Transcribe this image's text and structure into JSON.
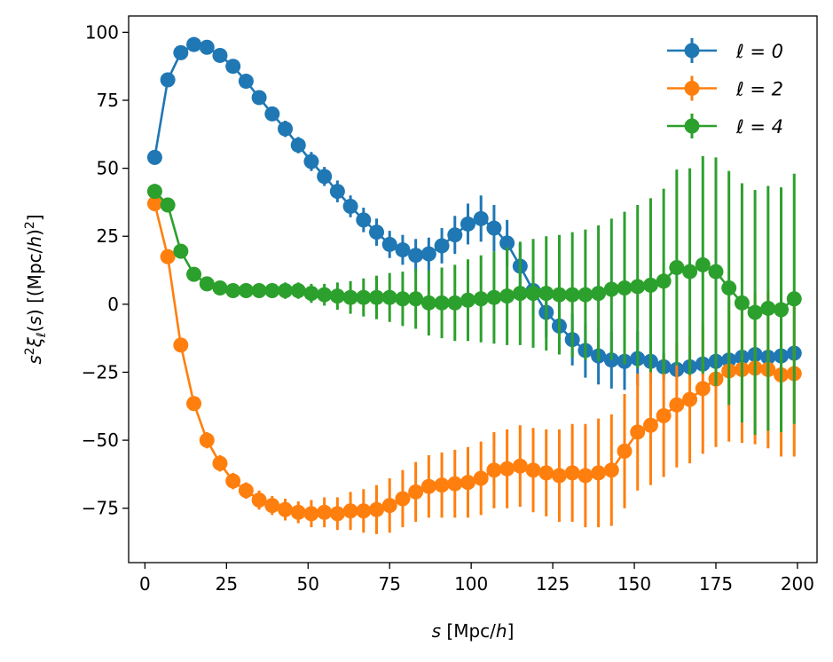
{
  "chart_data": {
    "type": "line",
    "title": "",
    "xlabel": "s [Mpc/h]",
    "ylabel": "s²ξℓ(s) [(Mpc/h)²]",
    "xlim": [
      -5,
      206
    ],
    "ylim": [
      -95,
      106
    ],
    "xticks": [
      0,
      25,
      50,
      75,
      100,
      125,
      150,
      175,
      200
    ],
    "yticks": [
      -75,
      -50,
      -25,
      0,
      25,
      50,
      75,
      100
    ],
    "legend_position": "top-right",
    "x": [
      3,
      7,
      11,
      15,
      19,
      23,
      27,
      31,
      35,
      39,
      43,
      47,
      51,
      55,
      59,
      63,
      67,
      71,
      75,
      79,
      83,
      87,
      91,
      95,
      99,
      103,
      107,
      111,
      115,
      119,
      123,
      127,
      131,
      135,
      139,
      143,
      147,
      151,
      155,
      159,
      163,
      167,
      171,
      175,
      179,
      183,
      187,
      191,
      195,
      199
    ],
    "series": [
      {
        "name": "ℓ = 0",
        "legend_label": "ℓ = 0",
        "color": "#1f77b4",
        "values": [
          54,
          82.5,
          92.5,
          95.5,
          94.5,
          91.5,
          87.5,
          82,
          76,
          70,
          64.5,
          58.5,
          52.5,
          47,
          41.5,
          36,
          31,
          26.5,
          22,
          20,
          18,
          18.5,
          21.5,
          25.5,
          29.5,
          31.5,
          28,
          22.5,
          14,
          5,
          -3,
          -8,
          -13,
          -17,
          -19,
          -20.5,
          -21,
          -20,
          -21,
          -23,
          -24,
          -23,
          -22,
          -21,
          -20.5,
          -19.5,
          -18.5,
          -19.5,
          -19,
          -18
        ],
        "errors": [
          1,
          1.5,
          2,
          2,
          2,
          2,
          2,
          2,
          2.5,
          2.5,
          3,
          3,
          3.5,
          3.5,
          4,
          4,
          4.5,
          5,
          5,
          5.5,
          6,
          6,
          6.5,
          7,
          7.5,
          8.5,
          8.5,
          8.5,
          8.5,
          8.5,
          9,
          9,
          9.5,
          10,
          10.5,
          10.5,
          10.5,
          10,
          8.5,
          5,
          3,
          2,
          2,
          1.5,
          1.5,
          1.5,
          1.5,
          1.5,
          1.5,
          1.5
        ]
      },
      {
        "name": "ℓ = 2",
        "legend_label": "ℓ = 2",
        "color": "#ff7f0e",
        "values": [
          37,
          17.5,
          -15,
          -36.5,
          -50,
          -58.5,
          -65,
          -68.5,
          -72,
          -74,
          -75.5,
          -76.5,
          -77,
          -76.5,
          -77,
          -76,
          -76,
          -75.5,
          -74,
          -71.5,
          -69,
          -67,
          -66.5,
          -66,
          -65.5,
          -64,
          -61,
          -60.5,
          -59.5,
          -61,
          -62,
          -63,
          -62,
          -63,
          -62,
          -61,
          -54,
          -47,
          -44.5,
          -41,
          -37,
          -35,
          -31,
          -27.5,
          -24.5,
          -24,
          -23.5,
          -24,
          -26,
          -25.5
        ],
        "errors": [
          1,
          1.5,
          2,
          2.5,
          3,
          3,
          3,
          3,
          3.5,
          3.5,
          4,
          4,
          5,
          5.5,
          6,
          7,
          8,
          9,
          10,
          10.5,
          11,
          11.5,
          12,
          12.5,
          13,
          13.5,
          14,
          14.5,
          15,
          15.5,
          16,
          17,
          18,
          19,
          20,
          20.5,
          21,
          21.5,
          22,
          22.5,
          23,
          23.5,
          24,
          25,
          26,
          27,
          28,
          29,
          30,
          30.5
        ]
      },
      {
        "name": "ℓ = 4",
        "legend_label": "ℓ = 4",
        "color": "#2ca02c",
        "values": [
          41.5,
          36.5,
          19.5,
          11,
          7.5,
          6,
          5,
          5,
          5,
          5,
          5,
          5,
          4,
          3.5,
          3,
          2.5,
          2.5,
          2.5,
          2.5,
          2,
          2,
          0.5,
          0.5,
          0.5,
          1.5,
          2,
          2.5,
          3,
          4,
          4,
          4,
          3.5,
          3.5,
          3.5,
          4,
          5.5,
          6,
          6.5,
          7,
          8.5,
          13.5,
          12,
          14.5,
          12,
          6,
          0.5,
          -3,
          -1.5,
          -2,
          2
        ],
        "errors": [
          1,
          1,
          1,
          1.5,
          1.5,
          1.5,
          2,
          2,
          2,
          2,
          3,
          3,
          3.5,
          4,
          5,
          6,
          7,
          8,
          9,
          10,
          11,
          12,
          13,
          14,
          15,
          16,
          17,
          18,
          19,
          20,
          21,
          22,
          23,
          24,
          25,
          26,
          28,
          30,
          32,
          34,
          36,
          38,
          40,
          42,
          43,
          44,
          45,
          45,
          45,
          46
        ]
      }
    ]
  }
}
